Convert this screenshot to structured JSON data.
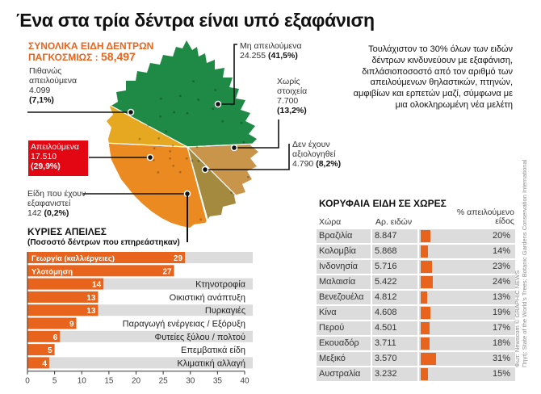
{
  "title": "Ένα στα τρία δέντρα είναι υπό εξαφάνιση",
  "total": {
    "label_line1": "ΣΥΝΟΛΙΚΑ ΕΙΔΗ ΔΕΝΤΡΩΝ",
    "label_line2": "ΠΑΓΚΟΣΜΙΩΣ : ",
    "value": "58,497"
  },
  "intro_text": "Τουλάχιστον το 30% όλων των ειδών δέντρων κινδυνεύουν με εξαφάνιση, διπλάσιοποσοστό από τον αριθμό των απειλούμενων θηλαστικών, πτηνών, αμφιβίων και ερπετών μαζί, σύμφωνα με μια ολοκληρωμένη νέα μελέτη",
  "chart_data": [
    {
      "type": "pie",
      "title": "ΣΥΝΟΛΙΚΑ ΕΙΔΗ ΔΕΝΤΡΩΝ ΠΑΓΚΟΣΜΙΩΣ : 58,497",
      "slices": [
        {
          "name_line1": "Μη απειλούμενα",
          "name_line2": "",
          "count": "24.255",
          "pct_label": "(41,5%)",
          "pct": 41.5,
          "color": "#1e8a45"
        },
        {
          "name_line1": "Χωρίς",
          "name_line2": "στοιχεία",
          "count": "7.700",
          "pct_label": "(13,2%)",
          "pct": 13.2,
          "color": "#c8954a"
        },
        {
          "name_line1": "Δεν έχουν",
          "name_line2": "αξιολογηθεί",
          "count": "4.790",
          "pct_label": "(8,2%)",
          "pct": 8.2,
          "color": "#a38a3e"
        },
        {
          "name_line1": "Είδη που έχουν",
          "name_line2": "εξαφανιστεί",
          "count": "142",
          "pct_label": "(0,2%)",
          "pct": 0.2,
          "color": "#8a7a40"
        },
        {
          "name_line1": "Απειλούμενα",
          "name_line2": "",
          "count": "17.510",
          "pct_label": "(29,9%)",
          "pct": 29.9,
          "color": "#ec8a22"
        },
        {
          "name_line1": "Πιθανώς",
          "name_line2": "απειλούμενα",
          "count": "4.099",
          "pct_label": "(7,1%)",
          "pct": 7.1,
          "color": "#e6a820"
        }
      ]
    },
    {
      "type": "bar",
      "orientation": "horizontal",
      "title": "ΚΥΡΙΕΣ ΑΠΕΙΛΕΣ",
      "subtitle": "(Ποσοστό δέντρων που επηρεάστηκαν)",
      "categories": [
        "Γεωργία (καλλιέργειες)",
        "Υλοτόμηση",
        "Κτηνοτροφία",
        "Οικιστική ανάπτυξη",
        "Πυρκαγιές",
        "Παραγωγή ενέργειας / Εξόρυξη",
        "Φυτείες ξύλου / πολτού",
        "Επεμβατικά είδη",
        "Κλιματική αλλαγή"
      ],
      "values": [
        29,
        27,
        14,
        13,
        13,
        9,
        6,
        5,
        4
      ],
      "value_labels": [
        "29",
        "27",
        "14",
        "13",
        "13",
        "9",
        "6",
        "5",
        "4"
      ],
      "xlim": [
        0,
        40
      ],
      "xticks": [
        "0",
        "5",
        "10",
        "15",
        "20",
        "25",
        "30",
        "35",
        "40"
      ],
      "bar_color": "#e8641c",
      "track_color": "#dcdcdc"
    },
    {
      "type": "table",
      "title": "ΚΟΡΥΦΑΙΑ ΕΙΔΗ ΣΕ ΧΩΡΕΣ",
      "columns": [
        "Χώρα",
        "Αρ. ειδών",
        "% απειλούμενο είδος"
      ],
      "col3_line1": "% απειλούμενο",
      "col3_line2": "είδος",
      "rows": [
        {
          "country": "Βραζιλία",
          "species": "8.847",
          "pct": 20,
          "pct_label": "20%"
        },
        {
          "country": "Κολομβία",
          "species": "5.868",
          "pct": 14,
          "pct_label": "14%"
        },
        {
          "country": "Ινδονησία",
          "species": "5.716",
          "pct": 23,
          "pct_label": "23%"
        },
        {
          "country": "Μαλαισία",
          "species": "5.422",
          "pct": 24,
          "pct_label": "24%"
        },
        {
          "country": "Βενεζουέλα",
          "species": "4.812",
          "pct": 13,
          "pct_label": "13%"
        },
        {
          "country": "Κίνα",
          "species": "4.608",
          "pct": 19,
          "pct_label": "19%"
        },
        {
          "country": "Περού",
          "species": "4.501",
          "pct": 17,
          "pct_label": "17%"
        },
        {
          "country": "Εκουαδόρ",
          "species": "3.711",
          "pct": 18,
          "pct_label": "18%"
        },
        {
          "country": "Μεξικό",
          "species": "3.570",
          "pct": 31,
          "pct_label": "31%"
        },
        {
          "country": "Αυστραλία",
          "species": "3.232",
          "pct": 15,
          "pct_label": "15%"
        }
      ]
    }
  ],
  "credits": {
    "line1": "Φωτ: Newscom   © GRAPHIC NEWS",
    "line2": "Πηγή: State of the World's Trees; Botanic Gardens Conservation International"
  }
}
